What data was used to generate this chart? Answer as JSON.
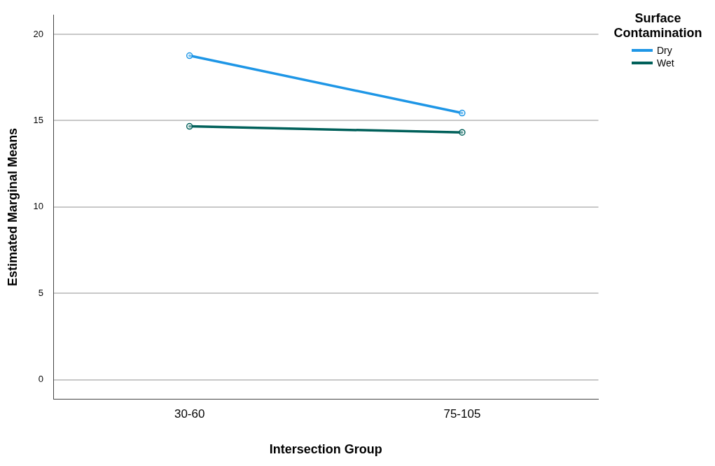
{
  "chart_data": {
    "type": "line",
    "xlabel": "Intersection Group",
    "ylabel": "Estimated Marginal Means",
    "legend_title": "Surface Contamination",
    "categories": [
      "30-60",
      "75-105"
    ],
    "series": [
      {
        "name": "Dry",
        "color": "#1e96e6",
        "values": [
          18.76,
          15.44
        ]
      },
      {
        "name": "Wet",
        "color": "#00605a",
        "values": [
          14.67,
          14.32
        ]
      }
    ],
    "ylim": [
      -1.1,
      21.1
    ],
    "yticks": [
      0,
      5,
      10,
      15,
      20
    ],
    "grid": "y",
    "legend": "top right",
    "marker": "circle",
    "line_style": "solid"
  }
}
